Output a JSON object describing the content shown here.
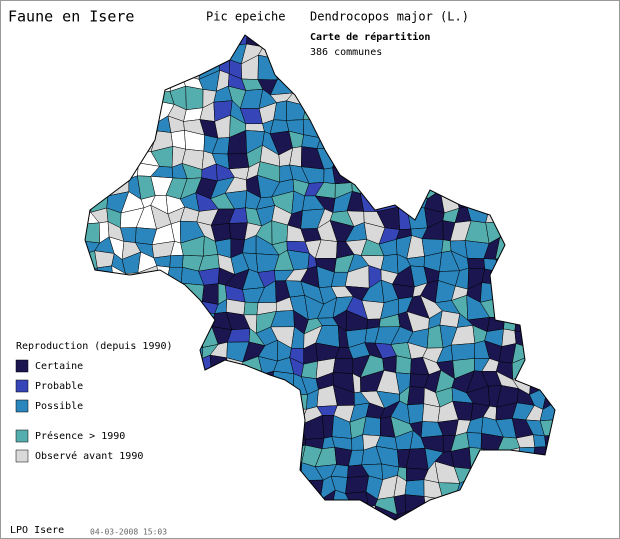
{
  "header": {
    "title": "Faune en Isere",
    "species": "Pic epeiche",
    "latin": "Dendrocopos major (L.)",
    "map_title": "Carte de répartition",
    "communes": "386 communes"
  },
  "legend": {
    "title": "Reproduction (depuis 1990)",
    "items": [
      {
        "label": "Certaine",
        "color": "#1b1650"
      },
      {
        "label": "Probable",
        "color": "#3646b8"
      },
      {
        "label": "Possible",
        "color": "#2a86bd"
      },
      {
        "label": "Présence > 1990",
        "color": "#55aeae"
      },
      {
        "label": "Observé avant 1990",
        "color": "#d9d9d9"
      }
    ]
  },
  "footer": {
    "org": "LPO Isere",
    "date": "04-03-2008 15:03"
  }
}
